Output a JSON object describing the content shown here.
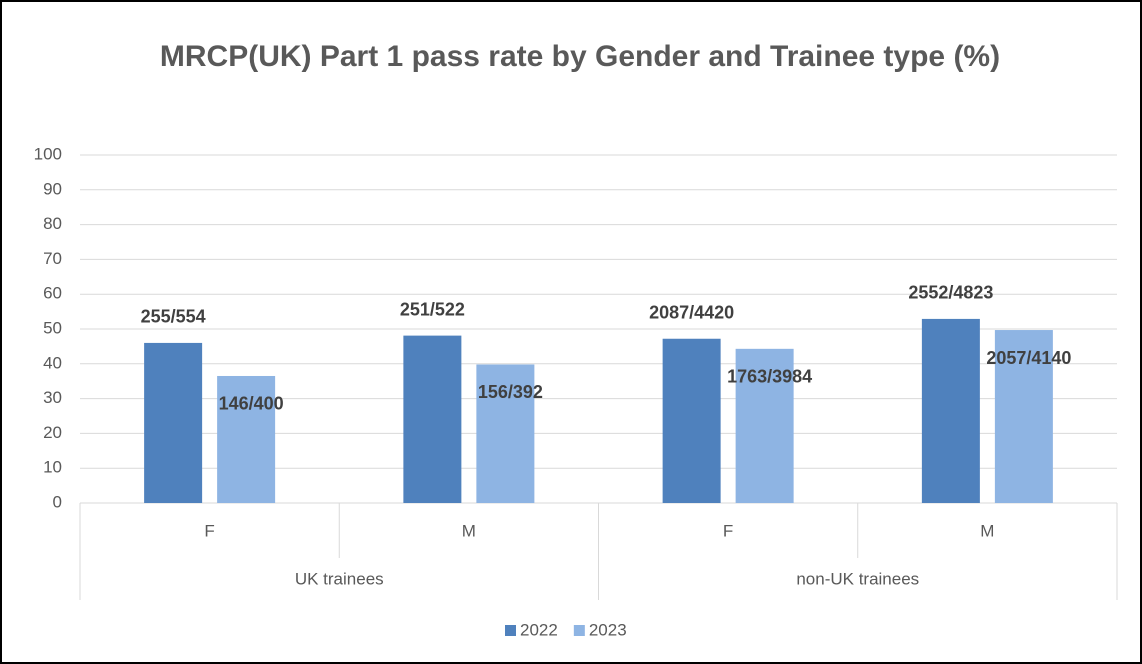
{
  "chart_data": {
    "type": "bar",
    "title": "MRCP(UK) Part 1 pass rate by Gender and Trainee type (%)",
    "groups": [
      "UK trainees",
      "non-UK trainees"
    ],
    "categories": [
      "F",
      "M",
      "F",
      "M"
    ],
    "series": [
      {
        "name": "2022",
        "color": "#4f81bd",
        "values": [
          46.0,
          48.1,
          47.2,
          52.9
        ],
        "value_labels": [
          "255/554",
          "251/522",
          "2087/4420",
          "2552/4823"
        ]
      },
      {
        "name": "2023",
        "color": "#8eb4e3",
        "values": [
          36.5,
          39.8,
          44.3,
          49.7
        ],
        "value_labels": [
          "146/400",
          "156/392",
          "1763/3984",
          "2057/4140"
        ]
      }
    ],
    "ylim": [
      0,
      100
    ],
    "yticks": [
      0,
      10,
      20,
      30,
      40,
      50,
      60,
      70,
      80,
      90,
      100
    ],
    "grid": true,
    "legend": "bottom"
  }
}
